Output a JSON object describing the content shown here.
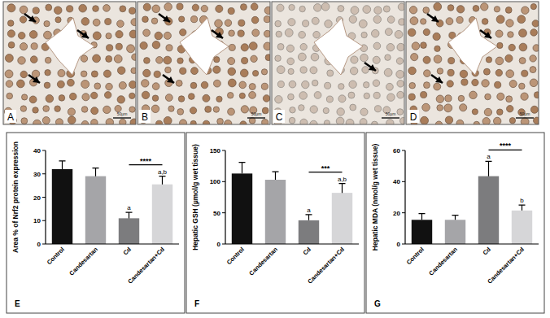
{
  "panels": [
    {
      "label": "A"
    },
    {
      "label": "B"
    },
    {
      "label": "C"
    },
    {
      "label": "D"
    }
  ],
  "scale_bar": "50µm",
  "chart_data": [
    {
      "type": "bar",
      "panel": "E",
      "y_label": "Area % of Nrf2 protein expression",
      "categories": [
        "Control",
        "Candesartan",
        "Cd",
        "Candesartan+Cd"
      ],
      "values": [
        32,
        29,
        11,
        25.5
      ],
      "errors": [
        3.5,
        3.5,
        2.5,
        3.5
      ],
      "colors": [
        "#111111",
        "#a5a5a8",
        "#7c7c7e",
        "#d6d6d8"
      ],
      "ylim": [
        0,
        40
      ],
      "yticks": [
        0,
        10,
        20,
        30,
        40
      ],
      "grid": false,
      "letters": [
        null,
        null,
        "a",
        "a,b"
      ],
      "significance": {
        "from": "Cd",
        "to": "Candesartan+Cd",
        "label": "****"
      }
    },
    {
      "type": "bar",
      "panel": "F",
      "y_label": "Hepatic GSH (µmol/g wet tissue)",
      "categories": [
        "Control",
        "Candesartan",
        "Cd",
        "Candesartan+Cd"
      ],
      "values": [
        113,
        103,
        38,
        82
      ],
      "errors": [
        18,
        13,
        9,
        15
      ],
      "colors": [
        "#111111",
        "#a5a5a8",
        "#7c7c7e",
        "#d6d6d8"
      ],
      "ylim": [
        0,
        150
      ],
      "yticks": [
        0,
        50,
        100,
        150
      ],
      "grid": false,
      "letters": [
        null,
        null,
        "a",
        "a,b"
      ],
      "significance": {
        "from": "Cd",
        "to": "Candesartan+Cd",
        "label": "***"
      }
    },
    {
      "type": "bar",
      "panel": "G",
      "y_label": "Hepatic MDA (nmol/g wet tissue)",
      "categories": [
        "Control",
        "Candesartan",
        "Cd",
        "Candesartan+Cd"
      ],
      "values": [
        15.5,
        15.5,
        43.5,
        21.5
      ],
      "errors": [
        4,
        3,
        9.5,
        3.5
      ],
      "colors": [
        "#111111",
        "#a5a5a8",
        "#7c7c7e",
        "#d6d6d8"
      ],
      "ylim": [
        0,
        60
      ],
      "yticks": [
        0,
        20,
        40,
        60
      ],
      "grid": false,
      "letters": [
        null,
        null,
        "a",
        "b"
      ],
      "significance": {
        "from": "Cd",
        "to": "Candesartan+Cd",
        "label": "****"
      }
    }
  ]
}
